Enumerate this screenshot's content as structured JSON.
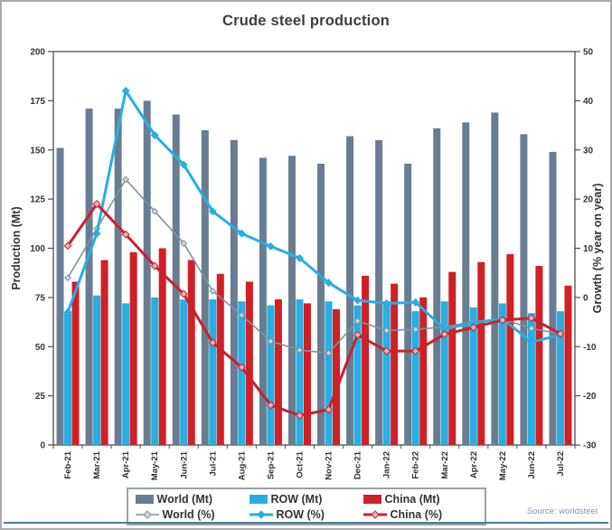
{
  "chart_data": {
    "type": "combo-bar-line",
    "title": "Crude steel production",
    "source": "Source: worldsteel",
    "grid": false,
    "legend_position": "bottom",
    "categories": [
      "Feb-21",
      "Mar-21",
      "Apr-21",
      "May-21",
      "Jun-21",
      "Jul-21",
      "Aug-21",
      "Sep-21",
      "Oct-21",
      "Nov-21",
      "Dec-21",
      "Jan-22",
      "Feb-22",
      "Mar-22",
      "Apr-22",
      "May-22",
      "Jun-22",
      "Jul-22"
    ],
    "left_axis": {
      "label": "Production (Mt)",
      "min": 0,
      "max": 200,
      "step": 25,
      "ticks": [
        0,
        25,
        50,
        75,
        100,
        125,
        150,
        175,
        200
      ]
    },
    "right_axis": {
      "label": "Growth (% year on year)",
      "min": -30,
      "max": 50,
      "step": 10,
      "ticks": [
        -30,
        -20,
        -10,
        0,
        10,
        20,
        30,
        40,
        50
      ]
    },
    "bar_series": [
      {
        "name": "World (Mt)",
        "color": "#697d92",
        "values": [
          151,
          171,
          171,
          175,
          168,
          160,
          155,
          146,
          147,
          143,
          157,
          155,
          143,
          161,
          164,
          169,
          158,
          149
        ]
      },
      {
        "name": "ROW (Mt)",
        "color": "#28aee3",
        "values": [
          67,
          76,
          72,
          75,
          74,
          74,
          73,
          71,
          74,
          73,
          71,
          73,
          68,
          73,
          70,
          72,
          67,
          68
        ]
      },
      {
        "name": "China (Mt)",
        "color": "#cf2026",
        "values": [
          83,
          94,
          98,
          100,
          94,
          87,
          83,
          74,
          72,
          69,
          86,
          82,
          75,
          88,
          93,
          97,
          91,
          81
        ]
      }
    ],
    "line_series": [
      {
        "name": "World (%)",
        "color": "#7b92a4",
        "width": 1.6,
        "marker_fill": "#cfd9e0",
        "marker_size": 3.2,
        "values": [
          4,
          14,
          24,
          17.5,
          11,
          1.3,
          -3.6,
          -8.9,
          -10.7,
          -11.3,
          -4.8,
          -6.7,
          -6.5,
          -6.0,
          -4.9,
          -4.4,
          -6.3,
          -7.4
        ]
      },
      {
        "name": "ROW (%)",
        "color": "#28aee3",
        "width": 3,
        "marker_fill": "#28aee3",
        "marker_size": 3.8,
        "values": [
          -3,
          13,
          42,
          33,
          27,
          17.5,
          13,
          10.4,
          8,
          3,
          -0.6,
          -1.2,
          -1,
          -6.4,
          -5.2,
          -4.3,
          -9.1,
          -7.6
        ]
      },
      {
        "name": "China (%)",
        "color": "#cc1f2d",
        "width": 3,
        "marker_fill": "#eeb3b6",
        "marker_size": 3.8,
        "values": [
          10.5,
          19,
          12.8,
          6.4,
          0.7,
          -9.2,
          -14.2,
          -21.9,
          -24,
          -22.8,
          -7.6,
          -10.9,
          -10.9,
          -7.5,
          -6.1,
          -4.6,
          -4.2,
          -7.4
        ]
      }
    ]
  }
}
